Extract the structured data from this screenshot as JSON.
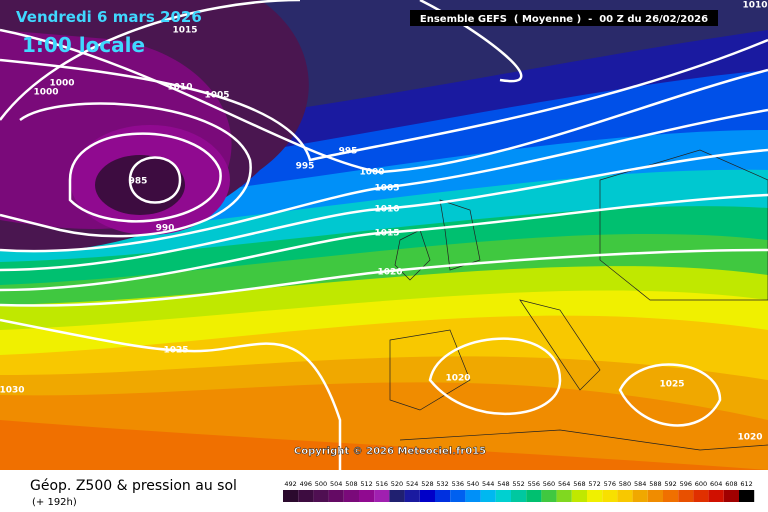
{
  "header": {
    "date": "Vendredi 6 mars 2026",
    "time": "1:00 locale",
    "model": "Ensemble GEFS  ( Moyenne )  -  00 Z du 26/02/2026"
  },
  "copyright": "Copyright © 2026 Meteociel.fr015",
  "footer": {
    "title": "Géop. Z500 & pression au sol",
    "lead": "(+ 192h)"
  },
  "isobar_labels": [
    1015,
    1010,
    1005,
    1000,
    1000,
    985,
    990,
    995,
    995,
    1000,
    1005,
    1010,
    1015,
    1020,
    1025,
    1030,
    1020,
    1025,
    1020,
    1010
  ],
  "legend": {
    "values": [
      492,
      496,
      500,
      504,
      508,
      512,
      516,
      520,
      524,
      528,
      532,
      536,
      540,
      544,
      548,
      552,
      556,
      560,
      564,
      568,
      572,
      576,
      580,
      584,
      588,
      592,
      596,
      600,
      604,
      608,
      612
    ],
    "colors": [
      "#2b0a2e",
      "#3d0c40",
      "#4f0f52",
      "#640a64",
      "#7a0a7a",
      "#900a90",
      "#a020b0",
      "#202070",
      "#1a1aa0",
      "#0000c8",
      "#0030e0",
      "#0060f0",
      "#0090f8",
      "#00b8f0",
      "#00d0d0",
      "#00c8a0",
      "#00c070",
      "#40c840",
      "#80d820",
      "#c0e800",
      "#f0f000",
      "#f8e000",
      "#f8c800",
      "#f0a800",
      "#f08c00",
      "#f07000",
      "#e85000",
      "#e03000",
      "#d01000",
      "#a00000",
      "#000000"
    ]
  }
}
